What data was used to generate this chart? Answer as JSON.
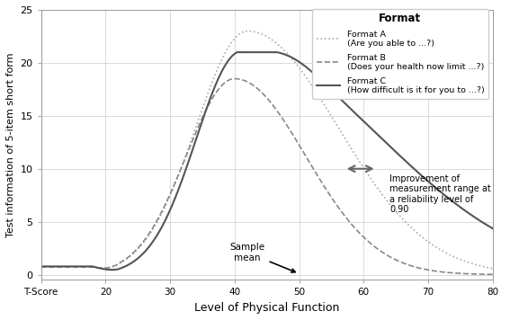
{
  "title": "",
  "xlabel": "Level of Physical Function",
  "ylabel": "Test information of 5-item short form",
  "xlim": [
    10,
    80
  ],
  "ylim": [
    -0.5,
    25
  ],
  "xticks": [
    10,
    20,
    30,
    40,
    50,
    60,
    70,
    80
  ],
  "xticklabels": [
    "T-Score",
    "20",
    "30",
    "40",
    "50",
    "60",
    "70",
    "80"
  ],
  "yticks": [
    0,
    5,
    10,
    15,
    20,
    25
  ],
  "legend_title": "Format",
  "format_a_label": "Format A\n(Are you able to ...?)",
  "format_b_label": "Format B\n(Does your health now limit ...?)",
  "format_c_label": "Format C\n(How difficult is it for you to ...?)",
  "annotation_arrow_text": "Improvement of\nmeasurement range at\na reliability level of\n0.90",
  "sample_mean_text": "Sample\nmean",
  "grid_color": "#cccccc",
  "background_color": "#ffffff"
}
